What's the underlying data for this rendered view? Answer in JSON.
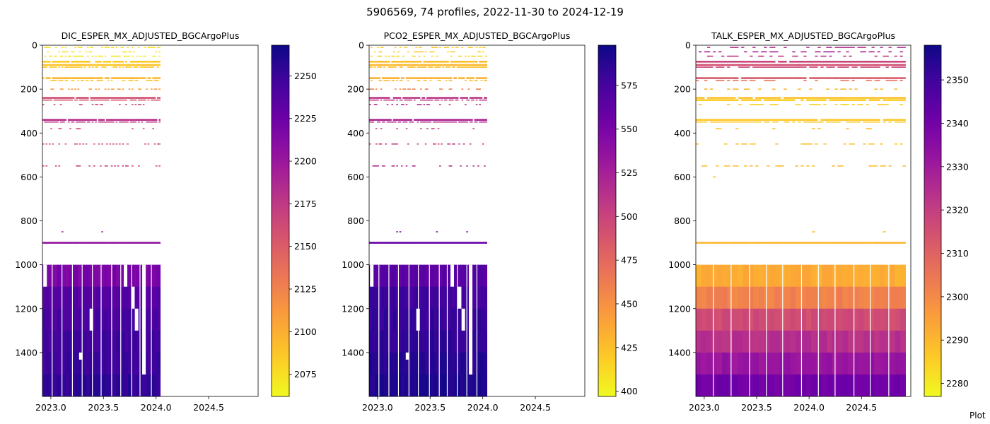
{
  "figure": {
    "title": "5906569, 74 profiles, 2022-11-30 to 2024-12-19",
    "credit": "Plot"
  },
  "chart_data": [
    {
      "type": "heatmap",
      "title": "DIC_ESPER_MX_ADJUSTED_BGCArgoPlus",
      "xlim": [
        2022.92,
        2024.97
      ],
      "ylim": [
        1600,
        0
      ],
      "x_ticks": [
        "2023.0",
        "2023.5",
        "2024.0",
        "2024.5"
      ],
      "x_tick_values": [
        2023.0,
        2023.5,
        2024.0,
        2024.5
      ],
      "y_ticks": [
        "0",
        "200",
        "400",
        "600",
        "800",
        "1000",
        "1200",
        "1400"
      ],
      "y_tick_values": [
        0,
        200,
        400,
        600,
        800,
        1000,
        1200,
        1400
      ],
      "data_x_range": [
        2022.92,
        2024.04
      ],
      "colormap": "plasma_r",
      "colorbar": {
        "range": [
          2062,
          2268
        ],
        "ticks": [
          "2075",
          "2100",
          "2125",
          "2150",
          "2175",
          "2200",
          "2225",
          "2250"
        ],
        "tick_values": [
          2075,
          2100,
          2125,
          2150,
          2175,
          2200,
          2225,
          2250
        ]
      },
      "scattered_bands": [
        {
          "depth": 10,
          "value": 2075,
          "density": 0.45
        },
        {
          "depth": 30,
          "value": 2072,
          "density": 0.35
        },
        {
          "depth": 50,
          "value": 2070,
          "density": 0.45
        },
        {
          "depth": 75,
          "value": 2085,
          "density": 0.9
        },
        {
          "depth": 90,
          "value": 2088,
          "density": 1.0
        },
        {
          "depth": 100,
          "value": 2086,
          "density": 0.7
        },
        {
          "depth": 150,
          "value": 2095,
          "density": 0.95
        },
        {
          "depth": 160,
          "value": 2090,
          "density": 0.45
        },
        {
          "depth": 200,
          "value": 2110,
          "density": 0.3
        },
        {
          "depth": 240,
          "value": 2160,
          "density": 0.9
        },
        {
          "depth": 250,
          "value": 2155,
          "density": 0.8
        },
        {
          "depth": 270,
          "value": 2165,
          "density": 0.25
        },
        {
          "depth": 340,
          "value": 2180,
          "density": 0.9
        },
        {
          "depth": 350,
          "value": 2175,
          "density": 0.7
        },
        {
          "depth": 380,
          "value": 2160,
          "density": 0.15
        },
        {
          "depth": 450,
          "value": 2160,
          "density": 0.35
        },
        {
          "depth": 550,
          "value": 2170,
          "density": 0.3
        },
        {
          "depth": 850,
          "value": 2195,
          "density": 0.03
        },
        {
          "depth": 900,
          "value": 2205,
          "density": 1.0
        }
      ],
      "deep_layers": [
        {
          "top": 1000,
          "bottom": 1100,
          "value": 2218
        },
        {
          "top": 1100,
          "bottom": 1200,
          "value": 2238
        },
        {
          "top": 1200,
          "bottom": 1300,
          "value": 2243
        },
        {
          "top": 1300,
          "bottom": 1400,
          "value": 2247
        },
        {
          "top": 1400,
          "bottom": 1500,
          "value": 2250
        },
        {
          "top": 1500,
          "bottom": 1600,
          "value": 2254
        }
      ],
      "deep_gaps": [
        2022.945,
        2023.285,
        2023.385,
        2023.71,
        2023.78,
        2023.815,
        2023.885
      ]
    },
    {
      "type": "heatmap",
      "title": "PCO2_ESPER_MX_ADJUSTED_BGCArgoPlus",
      "xlim": [
        2022.92,
        2024.97
      ],
      "ylim": [
        1600,
        0
      ],
      "x_ticks": [
        "2023.0",
        "2023.5",
        "2024.0",
        "2024.5"
      ],
      "x_tick_values": [
        2023.0,
        2023.5,
        2024.0,
        2024.5
      ],
      "y_ticks": [
        "0",
        "200",
        "400",
        "600",
        "800",
        "1000",
        "1200",
        "1400"
      ],
      "y_tick_values": [
        0,
        200,
        400,
        600,
        800,
        1000,
        1200,
        1400
      ],
      "data_x_range": [
        2022.92,
        2024.04
      ],
      "colormap": "plasma_r",
      "colorbar": {
        "range": [
          397,
          598
        ],
        "ticks": [
          "400",
          "425",
          "450",
          "475",
          "500",
          "525",
          "550",
          "575"
        ],
        "tick_values": [
          400,
          425,
          450,
          475,
          500,
          525,
          550,
          575
        ]
      },
      "scattered_bands": [
        {
          "depth": 10,
          "value": 420,
          "density": 0.45
        },
        {
          "depth": 30,
          "value": 418,
          "density": 0.35
        },
        {
          "depth": 50,
          "value": 415,
          "density": 0.45
        },
        {
          "depth": 75,
          "value": 425,
          "density": 0.9
        },
        {
          "depth": 90,
          "value": 428,
          "density": 1.0
        },
        {
          "depth": 100,
          "value": 426,
          "density": 0.7
        },
        {
          "depth": 150,
          "value": 432,
          "density": 0.95
        },
        {
          "depth": 160,
          "value": 430,
          "density": 0.45
        },
        {
          "depth": 200,
          "value": 460,
          "density": 0.3
        },
        {
          "depth": 240,
          "value": 510,
          "density": 0.9
        },
        {
          "depth": 250,
          "value": 505,
          "density": 0.8
        },
        {
          "depth": 270,
          "value": 512,
          "density": 0.25
        },
        {
          "depth": 340,
          "value": 520,
          "density": 0.9
        },
        {
          "depth": 350,
          "value": 515,
          "density": 0.7
        },
        {
          "depth": 380,
          "value": 505,
          "density": 0.15
        },
        {
          "depth": 450,
          "value": 505,
          "density": 0.35
        },
        {
          "depth": 550,
          "value": 515,
          "density": 0.3
        },
        {
          "depth": 850,
          "value": 545,
          "density": 0.03
        },
        {
          "depth": 900,
          "value": 560,
          "density": 1.0
        }
      ],
      "deep_layers": [
        {
          "top": 1000,
          "bottom": 1100,
          "value": 566
        },
        {
          "top": 1100,
          "bottom": 1200,
          "value": 578
        },
        {
          "top": 1200,
          "bottom": 1300,
          "value": 582
        },
        {
          "top": 1300,
          "bottom": 1400,
          "value": 585
        },
        {
          "top": 1400,
          "bottom": 1500,
          "value": 588
        },
        {
          "top": 1500,
          "bottom": 1600,
          "value": 592
        }
      ],
      "deep_gaps": [
        2022.945,
        2023.285,
        2023.385,
        2023.71,
        2023.78,
        2023.815,
        2023.885
      ]
    },
    {
      "type": "heatmap",
      "title": "TALK_ESPER_MX_ADJUSTED_BGCArgoPlus",
      "xlim": [
        2022.92,
        2024.97
      ],
      "ylim": [
        1600,
        0
      ],
      "x_ticks": [
        "2023.0",
        "2023.5",
        "2024.0",
        "2024.5"
      ],
      "x_tick_values": [
        2023.0,
        2023.5,
        2024.0,
        2024.5
      ],
      "y_ticks": [
        "0",
        "200",
        "400",
        "600",
        "800",
        "1000",
        "1200",
        "1400"
      ],
      "y_tick_values": [
        0,
        200,
        400,
        600,
        800,
        1000,
        1200,
        1400
      ],
      "data_x_range": [
        2022.92,
        2024.92
      ],
      "colormap": "plasma_r",
      "colorbar": {
        "range": [
          2277,
          2358
        ],
        "ticks": [
          "2280",
          "2290",
          "2300",
          "2310",
          "2320",
          "2330",
          "2340",
          "2350"
        ],
        "tick_values": [
          2280,
          2290,
          2300,
          2310,
          2320,
          2330,
          2340,
          2350
        ]
      },
      "scattered_bands": [
        {
          "depth": 10,
          "value": 2325,
          "density": 0.45
        },
        {
          "depth": 30,
          "value": 2328,
          "density": 0.4
        },
        {
          "depth": 50,
          "value": 2322,
          "density": 0.35
        },
        {
          "depth": 75,
          "value": 2318,
          "density": 0.95
        },
        {
          "depth": 90,
          "value": 2315,
          "density": 1.0
        },
        {
          "depth": 100,
          "value": 2318,
          "density": 0.8
        },
        {
          "depth": 150,
          "value": 2312,
          "density": 0.95
        },
        {
          "depth": 160,
          "value": 2306,
          "density": 0.5
        },
        {
          "depth": 200,
          "value": 2290,
          "density": 0.3
        },
        {
          "depth": 240,
          "value": 2288,
          "density": 0.95
        },
        {
          "depth": 250,
          "value": 2285,
          "density": 0.9
        },
        {
          "depth": 270,
          "value": 2285,
          "density": 0.3
        },
        {
          "depth": 340,
          "value": 2286,
          "density": 0.95
        },
        {
          "depth": 350,
          "value": 2287,
          "density": 0.8
        },
        {
          "depth": 380,
          "value": 2288,
          "density": 0.15
        },
        {
          "depth": 450,
          "value": 2288,
          "density": 0.35
        },
        {
          "depth": 550,
          "value": 2289,
          "density": 0.3
        },
        {
          "depth": 600,
          "value": 2289,
          "density": 0.03
        },
        {
          "depth": 850,
          "value": 2289,
          "density": 0.02
        },
        {
          "depth": 900,
          "value": 2290,
          "density": 1.0
        }
      ],
      "deep_layers": [
        {
          "top": 1000,
          "bottom": 1100,
          "value": 2292
        },
        {
          "top": 1100,
          "bottom": 1200,
          "value": 2302
        },
        {
          "top": 1200,
          "bottom": 1300,
          "value": 2316
        },
        {
          "top": 1300,
          "bottom": 1400,
          "value": 2324
        },
        {
          "top": 1400,
          "bottom": 1500,
          "value": 2332
        },
        {
          "top": 1500,
          "bottom": 1600,
          "value": 2340
        }
      ],
      "deep_gaps": []
    }
  ]
}
